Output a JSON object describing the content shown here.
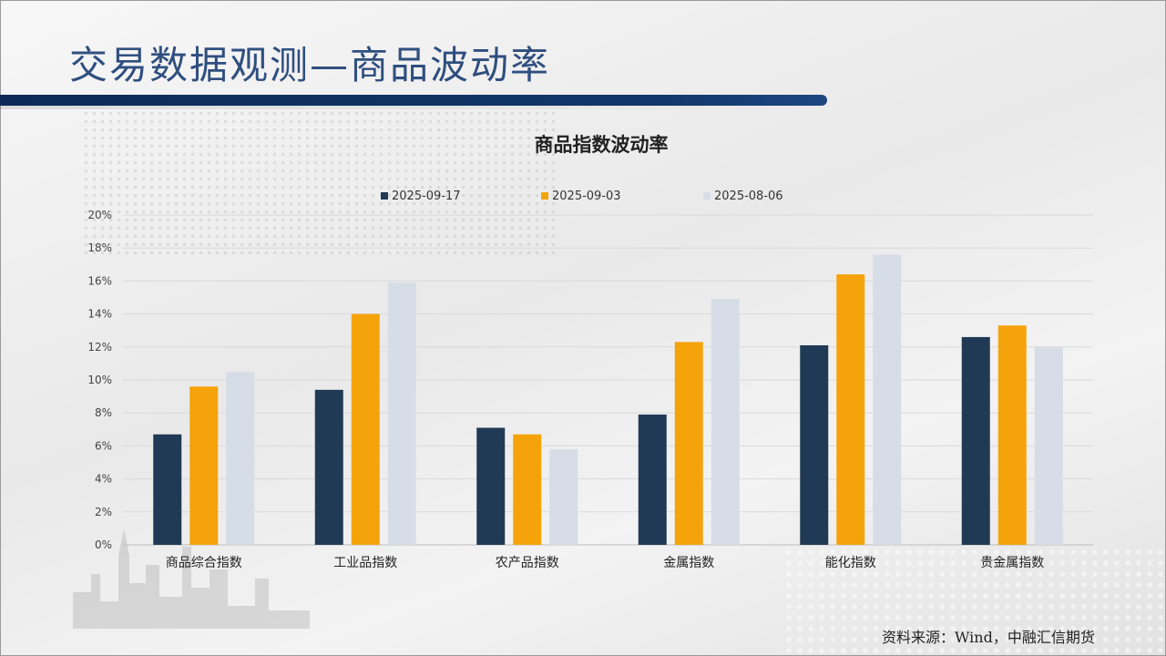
{
  "header": {
    "title": "交易数据观测—商品波动率"
  },
  "source": "资料来源：Wind，中融汇信期货",
  "chart_data": {
    "type": "bar",
    "title": "商品指数波动率",
    "categories": [
      "商品综合指数",
      "工业品指数",
      "农产品指数",
      "金属指数",
      "能化指数",
      "贵金属指数"
    ],
    "series": [
      {
        "name": "2025-09-17",
        "color": "#203a55",
        "values": [
          6.7,
          9.4,
          7.1,
          7.9,
          12.1,
          12.6
        ]
      },
      {
        "name": "2025-09-03",
        "color": "#f5a30a",
        "values": [
          9.6,
          14.0,
          6.7,
          12.3,
          16.4,
          13.3
        ]
      },
      {
        "name": "2025-08-06",
        "color": "#d6dde6",
        "values": [
          10.5,
          15.9,
          5.8,
          14.9,
          17.6,
          12.0
        ]
      }
    ],
    "ylim": [
      0,
      20
    ],
    "yticks": [
      "0%",
      "2%",
      "4%",
      "6%",
      "8%",
      "10%",
      "12%",
      "14%",
      "16%",
      "18%",
      "20%"
    ],
    "grid": true,
    "legend": "top"
  }
}
